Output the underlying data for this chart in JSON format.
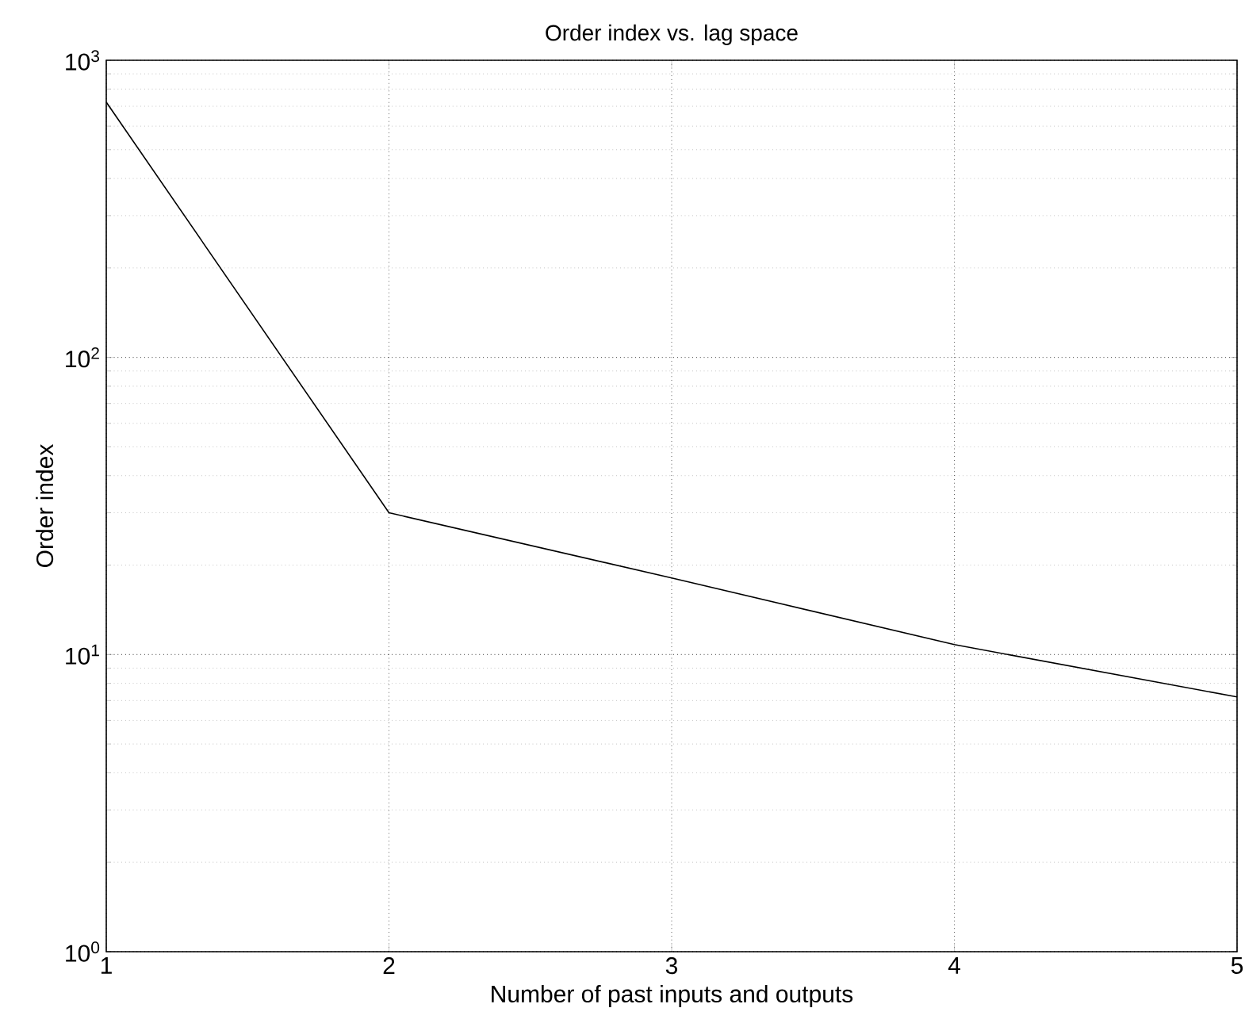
{
  "chart_data": {
    "type": "line",
    "title": "Order index vs. lag space",
    "xlabel": "Number of past inputs and outputs",
    "ylabel": "Order index",
    "x": [
      1,
      2,
      3,
      4,
      5
    ],
    "series": [
      {
        "color": "#000000",
        "values": [
          723,
          30,
          18.1,
          10.8,
          7.2
        ]
      }
    ],
    "xlim": [
      1,
      5
    ],
    "xticks": [
      1,
      2,
      3,
      4,
      5
    ],
    "ylim": [
      1,
      1000
    ],
    "yticks": [
      {
        "value": 1,
        "label": "10$^{0}$"
      },
      {
        "value": 10,
        "label": "10$^{1}$"
      },
      {
        "value": 100,
        "label": "10$^{2}$"
      },
      {
        "value": 1000,
        "label": "10$^{3}$"
      }
    ],
    "log": "y",
    "grid": true,
    "line_style": "solid",
    "marker": "none"
  }
}
